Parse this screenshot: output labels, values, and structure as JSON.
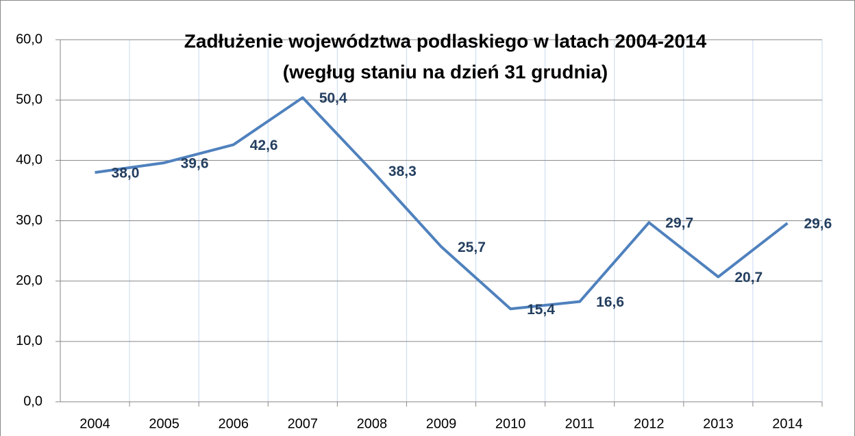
{
  "chart_data": {
    "type": "line",
    "title": [
      "Zadłużenie województwa podlaskiego w latach 2004-2014",
      "(wegług staniu na dzień 31 grudnia)"
    ],
    "categories": [
      "2004",
      "2005",
      "2006",
      "2007",
      "2008",
      "2009",
      "2010",
      "2011",
      "2012",
      "2013",
      "2014"
    ],
    "series": [
      {
        "name": "Zadłużenie",
        "color": "#4f81bd",
        "values": [
          38.0,
          39.6,
          42.6,
          50.4,
          38.3,
          25.7,
          15.4,
          16.6,
          29.7,
          20.7,
          29.6
        ],
        "value_labels": [
          "38,0",
          "39,6",
          "42,6",
          "50,4",
          "38,3",
          "25,7",
          "15,4",
          "16,6",
          "29,7",
          "20,7",
          "29,6"
        ]
      }
    ],
    "ylim": [
      0,
      60
    ],
    "yticks": [
      {
        "value": 0,
        "label": "0,0"
      },
      {
        "value": 10,
        "label": "10,0"
      },
      {
        "value": 20,
        "label": "20,0"
      },
      {
        "value": 30,
        "label": "30,0"
      },
      {
        "value": 40,
        "label": "40,0"
      },
      {
        "value": 50,
        "label": "50,0"
      },
      {
        "value": 60,
        "label": "60,0"
      }
    ],
    "grid": true
  }
}
